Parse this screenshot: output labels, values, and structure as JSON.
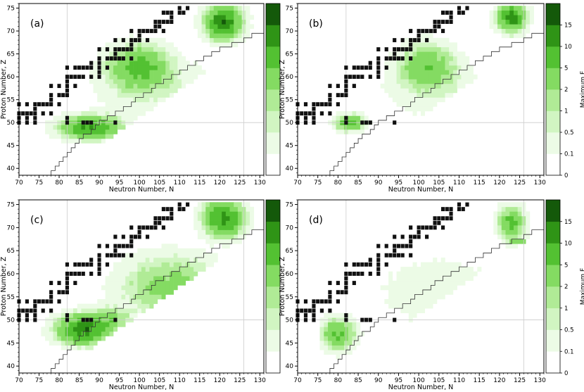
{
  "figure": {
    "panels": [
      {
        "label": "(a)"
      },
      {
        "label": "(b)"
      },
      {
        "label": "(c)"
      },
      {
        "label": "(d)"
      }
    ]
  },
  "chart_data": [
    {
      "type": "heatmap",
      "panel": "(a)",
      "xlabel": "Neutron Number, N",
      "ylabel": "Proton Number, Z",
      "xlim": [
        70,
        131
      ],
      "ylim": [
        38.5,
        76
      ],
      "xticks": [
        70,
        75,
        80,
        85,
        90,
        95,
        100,
        105,
        110,
        115,
        120,
        125,
        130
      ],
      "yticks": [
        40,
        45,
        50,
        55,
        60,
        65,
        70,
        75
      ],
      "grid_lines": {
        "N": 82,
        "Z": 50,
        "N2": 126
      },
      "colorbar": {
        "label": "",
        "ticks": []
      },
      "hotspots": [
        {
          "N": 121,
          "Z": 72,
          "Fmax": 15,
          "sN": 3.2,
          "sZ": 2.6
        },
        {
          "N": 100,
          "Z": 62,
          "Fmax": 7,
          "sN": 5.5,
          "sZ": 3.5
        },
        {
          "N": 88,
          "Z": 49,
          "Fmax": 10,
          "sN": 5.5,
          "sZ": 1.8
        },
        {
          "N": 105,
          "Z": 57,
          "Fmax": 0.6,
          "sN": 12,
          "sZ": 5
        }
      ]
    },
    {
      "type": "heatmap",
      "panel": "(b)",
      "xlabel": "Neutron Number, N",
      "ylabel": "Proton Number, Z",
      "xlim": [
        70,
        131
      ],
      "ylim": [
        38.5,
        76
      ],
      "xticks": [
        70,
        75,
        80,
        85,
        90,
        95,
        100,
        105,
        110,
        115,
        120,
        125,
        130
      ],
      "yticks": [
        40,
        45,
        50,
        55,
        60,
        65,
        70,
        75
      ],
      "grid_lines": {
        "N": 82,
        "Z": 50,
        "N2": 126
      },
      "colorbar": {
        "label": "Maximum F",
        "ticks": [
          "0",
          "0.1",
          "0.5",
          "1",
          "2",
          "5",
          "10",
          "15"
        ]
      },
      "hotspots": [
        {
          "N": 123,
          "Z": 73,
          "Fmax": 12,
          "sN": 2.5,
          "sZ": 2.2
        },
        {
          "N": 102,
          "Z": 62,
          "Fmax": 5,
          "sN": 5,
          "sZ": 3.5
        },
        {
          "N": 83,
          "Z": 50,
          "Fmax": 8,
          "sN": 2.5,
          "sZ": 1.2
        },
        {
          "N": 105,
          "Z": 57,
          "Fmax": 0.4,
          "sN": 11,
          "sZ": 5
        }
      ]
    },
    {
      "type": "heatmap",
      "panel": "(c)",
      "xlabel": "Neutron Number, N",
      "ylabel": "Proton Number, Z",
      "xlim": [
        70,
        131
      ],
      "ylim": [
        38.5,
        76
      ],
      "xticks": [
        70,
        75,
        80,
        85,
        90,
        95,
        100,
        105,
        110,
        115,
        120,
        125,
        130
      ],
      "yticks": [
        40,
        45,
        50,
        55,
        60,
        65,
        70,
        75
      ],
      "grid_lines": {
        "N": 82,
        "Z": 50,
        "N2": 126
      },
      "colorbar": {
        "label": "",
        "ticks": []
      },
      "hotspots": [
        {
          "N": 121,
          "Z": 72,
          "Fmax": 12,
          "sN": 3.5,
          "sZ": 2.8
        },
        {
          "N": 86,
          "Z": 48,
          "Fmax": 15,
          "sN": 4.5,
          "sZ": 2.2
        },
        {
          "N": 108,
          "Z": 57,
          "Fmax": 3,
          "sN": 9,
          "sZ": 5
        },
        {
          "N": 92,
          "Z": 50,
          "Fmax": 4,
          "sN": 4,
          "sZ": 2
        }
      ]
    },
    {
      "type": "heatmap",
      "panel": "(d)",
      "xlabel": "Neutron Number, N",
      "ylabel": "Proton Number, Z",
      "xlim": [
        70,
        131
      ],
      "ylim": [
        38.5,
        76
      ],
      "xticks": [
        70,
        75,
        80,
        85,
        90,
        95,
        100,
        105,
        110,
        115,
        120,
        125,
        130
      ],
      "yticks": [
        40,
        45,
        50,
        55,
        60,
        65,
        70,
        75
      ],
      "grid_lines": {
        "N": 82,
        "Z": 50,
        "N2": 126
      },
      "colorbar": {
        "label": "Maximum F",
        "ticks": [
          "0",
          "0.1",
          "0.5",
          "1",
          "2",
          "5",
          "10",
          "15"
        ]
      },
      "hotspots": [
        {
          "N": 123,
          "Z": 71,
          "Fmax": 6,
          "sN": 2.3,
          "sZ": 2.5
        },
        {
          "N": 80,
          "Z": 47,
          "Fmax": 5,
          "sN": 3,
          "sZ": 2.5
        },
        {
          "N": 105,
          "Z": 56,
          "Fmax": 0.35,
          "sN": 12,
          "sZ": 6
        },
        {
          "N": 125,
          "Z": 67,
          "Fmax": 5,
          "sN": 1.8,
          "sZ": 0.5
        }
      ]
    }
  ],
  "color_levels": [
    {
      "min": 0.1,
      "color": "#ecfbe6"
    },
    {
      "min": 0.5,
      "color": "#d1f5c2"
    },
    {
      "min": 1,
      "color": "#b0eb96"
    },
    {
      "min": 2,
      "color": "#84db62"
    },
    {
      "min": 5,
      "color": "#53c132"
    },
    {
      "min": 10,
      "color": "#2f9416"
    },
    {
      "min": 15,
      "color": "#14590a"
    }
  ],
  "colors": {
    "stable_nuclei": "#111111",
    "guide_line": "#cccccc",
    "drip_line": "#333333"
  }
}
